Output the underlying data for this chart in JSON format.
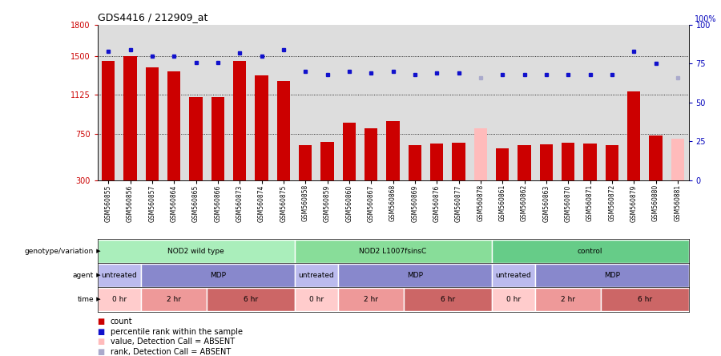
{
  "title": "GDS4416 / 212909_at",
  "samples": [
    "GSM560855",
    "GSM560856",
    "GSM560857",
    "GSM560864",
    "GSM560865",
    "GSM560866",
    "GSM560873",
    "GSM560874",
    "GSM560875",
    "GSM560858",
    "GSM560859",
    "GSM560860",
    "GSM560867",
    "GSM560868",
    "GSM560869",
    "GSM560876",
    "GSM560877",
    "GSM560878",
    "GSM560861",
    "GSM560862",
    "GSM560863",
    "GSM560870",
    "GSM560871",
    "GSM560872",
    "GSM560879",
    "GSM560880",
    "GSM560881"
  ],
  "bar_values": [
    1450,
    1500,
    1390,
    1350,
    1100,
    1100,
    1450,
    1310,
    1260,
    640,
    670,
    855,
    800,
    870,
    635,
    655,
    665,
    800,
    605,
    635,
    645,
    660,
    655,
    635,
    1155,
    730,
    700
  ],
  "bar_absent": [
    false,
    false,
    false,
    false,
    false,
    false,
    false,
    false,
    false,
    false,
    false,
    false,
    false,
    false,
    false,
    false,
    false,
    true,
    false,
    false,
    false,
    false,
    false,
    false,
    false,
    false,
    true
  ],
  "percentile_values": [
    83,
    84,
    80,
    80,
    76,
    76,
    82,
    80,
    84,
    70,
    68,
    70,
    69,
    70,
    68,
    69,
    69,
    66,
    68,
    68,
    68,
    68,
    68,
    68,
    83,
    75,
    66
  ],
  "percentile_absent": [
    false,
    false,
    false,
    false,
    false,
    false,
    false,
    false,
    false,
    false,
    false,
    false,
    false,
    false,
    false,
    false,
    false,
    true,
    false,
    false,
    false,
    false,
    false,
    false,
    false,
    false,
    true
  ],
  "bar_color": "#cc0000",
  "bar_absent_color": "#ffbbbb",
  "dot_color": "#1111cc",
  "dot_absent_color": "#aaaacc",
  "ylim_left": [
    300,
    1800
  ],
  "ylim_right": [
    0,
    100
  ],
  "yticks_left": [
    300,
    750,
    1125,
    1500,
    1800
  ],
  "yticks_right": [
    0,
    25,
    50,
    75,
    100
  ],
  "grid_values": [
    750,
    1125,
    1500
  ],
  "genotype_groups": [
    {
      "label": "NOD2 wild type",
      "start": 0,
      "end": 8,
      "color": "#aaeebb"
    },
    {
      "label": "NOD2 L1007fsinsC",
      "start": 9,
      "end": 17,
      "color": "#88dd99"
    },
    {
      "label": "control",
      "start": 18,
      "end": 26,
      "color": "#66cc88"
    }
  ],
  "agent_groups": [
    {
      "label": "untreated",
      "start": 0,
      "end": 1,
      "color": "#bbbbee"
    },
    {
      "label": "MDP",
      "start": 2,
      "end": 8,
      "color": "#8888cc"
    },
    {
      "label": "untreated",
      "start": 9,
      "end": 10,
      "color": "#bbbbee"
    },
    {
      "label": "MDP",
      "start": 11,
      "end": 17,
      "color": "#8888cc"
    },
    {
      "label": "untreated",
      "start": 18,
      "end": 19,
      "color": "#bbbbee"
    },
    {
      "label": "MDP",
      "start": 20,
      "end": 26,
      "color": "#8888cc"
    }
  ],
  "time_groups": [
    {
      "label": "0 hr",
      "start": 0,
      "end": 1,
      "color": "#ffcccc"
    },
    {
      "label": "2 hr",
      "start": 2,
      "end": 4,
      "color": "#ee9999"
    },
    {
      "label": "6 hr",
      "start": 5,
      "end": 8,
      "color": "#cc6666"
    },
    {
      "label": "0 hr",
      "start": 9,
      "end": 10,
      "color": "#ffcccc"
    },
    {
      "label": "2 hr",
      "start": 11,
      "end": 13,
      "color": "#ee9999"
    },
    {
      "label": "6 hr",
      "start": 14,
      "end": 17,
      "color": "#cc6666"
    },
    {
      "label": "0 hr",
      "start": 18,
      "end": 19,
      "color": "#ffcccc"
    },
    {
      "label": "2 hr",
      "start": 20,
      "end": 22,
      "color": "#ee9999"
    },
    {
      "label": "6 hr",
      "start": 23,
      "end": 26,
      "color": "#cc6666"
    }
  ],
  "legend_items": [
    {
      "color": "#cc0000",
      "label": "count"
    },
    {
      "color": "#1111cc",
      "label": "percentile rank within the sample"
    },
    {
      "color": "#ffbbbb",
      "label": "value, Detection Call = ABSENT"
    },
    {
      "color": "#aaaacc",
      "label": "rank, Detection Call = ABSENT"
    }
  ],
  "plot_bg_color": "#dddddd"
}
